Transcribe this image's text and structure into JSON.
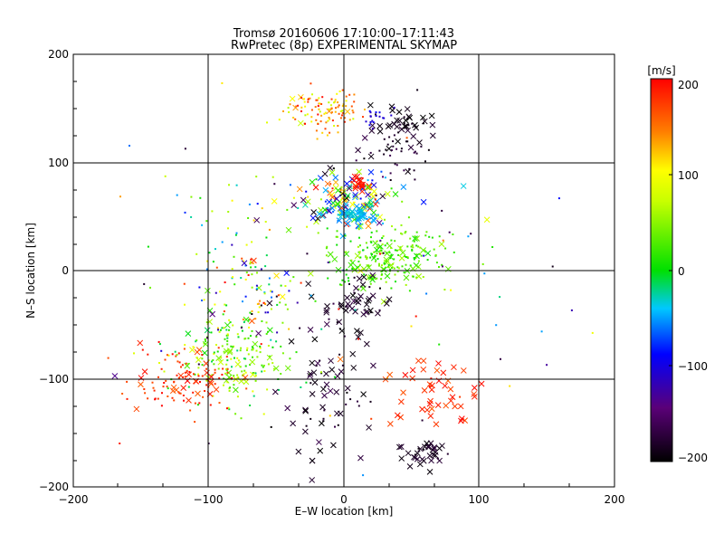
{
  "chart_data": {
    "type": "scatter",
    "title": "Tromsø 20160606 17:10:00–17:11:43",
    "subtitle": "RwPretec (8p) EXPERIMENTAL SKYMAP",
    "xlabel": "E–W location [km]",
    "ylabel": "N–S location [km]",
    "xlim": [
      -200,
      200
    ],
    "ylim": [
      -200,
      200
    ],
    "xticks": [
      "−200",
      "−100",
      "0",
      "100",
      "200"
    ],
    "yticks": [
      "−200",
      "−100",
      "0",
      "100",
      "200"
    ],
    "grid": true,
    "colorbar": {
      "label": "[m/s]",
      "range": [
        -200,
        200
      ],
      "ticks": [
        "200",
        "100",
        "0",
        "−100",
        "−200"
      ]
    },
    "marker_types": [
      "dot",
      "x"
    ],
    "clusters": [
      {
        "name": "north-top-dots",
        "x": -15,
        "y": 148,
        "sx": 15,
        "sy": 10,
        "n": 110,
        "v": [
          60,
          200
        ],
        "marker": "dot"
      },
      {
        "name": "north-top-x-black",
        "x": 45,
        "y": 135,
        "sx": 12,
        "sy": 8,
        "n": 40,
        "v": [
          -200,
          -170
        ],
        "marker": "x"
      },
      {
        "name": "north-top-blue",
        "x": 25,
        "y": 142,
        "sx": 6,
        "sy": 5,
        "n": 18,
        "v": [
          -120,
          -90
        ],
        "marker": "dot"
      },
      {
        "name": "north-mid-black",
        "x": 40,
        "y": 110,
        "sx": 14,
        "sy": 10,
        "n": 40,
        "v": [
          -200,
          -160
        ],
        "marker": "dot"
      },
      {
        "name": "upper-band-mixed",
        "x": 0,
        "y": 68,
        "sx": 18,
        "sy": 12,
        "n": 140,
        "v": [
          -200,
          200
        ],
        "marker": "x"
      },
      {
        "name": "upper-band-cyan",
        "x": 5,
        "y": 52,
        "sx": 10,
        "sy": 5,
        "n": 60,
        "v": [
          -60,
          -30
        ],
        "marker": "x"
      },
      {
        "name": "upper-band-red",
        "x": 12,
        "y": 80,
        "sx": 4,
        "sy": 4,
        "n": 16,
        "v": [
          180,
          200
        ],
        "marker": "x"
      },
      {
        "name": "mid-green",
        "x": 30,
        "y": 15,
        "sx": 22,
        "sy": 15,
        "n": 190,
        "v": [
          0,
          60
        ],
        "marker": "dot"
      },
      {
        "name": "mid-green-x",
        "x": 25,
        "y": 10,
        "sx": 18,
        "sy": 12,
        "n": 40,
        "v": [
          0,
          60
        ],
        "marker": "x"
      },
      {
        "name": "center-black-x",
        "x": 12,
        "y": -30,
        "sx": 12,
        "sy": 15,
        "n": 45,
        "v": [
          -200,
          -160
        ],
        "marker": "x"
      },
      {
        "name": "southwest-green",
        "x": -80,
        "y": -80,
        "sx": 20,
        "sy": 22,
        "n": 170,
        "v": [
          -20,
          100
        ],
        "marker": "dot"
      },
      {
        "name": "southwest-green-x",
        "x": -80,
        "y": -95,
        "sx": 15,
        "sy": 15,
        "n": 30,
        "v": [
          10,
          80
        ],
        "marker": "x"
      },
      {
        "name": "southwest-red",
        "x": -120,
        "y": -100,
        "sx": 18,
        "sy": 15,
        "n": 80,
        "v": [
          160,
          200
        ],
        "marker": "dot"
      },
      {
        "name": "southwest-red-x",
        "x": -115,
        "y": -105,
        "sx": 15,
        "sy": 15,
        "n": 30,
        "v": [
          160,
          200
        ],
        "marker": "x"
      },
      {
        "name": "south-center-black",
        "x": -15,
        "y": -110,
        "sx": 20,
        "sy": 35,
        "n": 75,
        "v": [
          -200,
          -160
        ],
        "marker": "x"
      },
      {
        "name": "southeast-red",
        "x": 70,
        "y": -110,
        "sx": 15,
        "sy": 18,
        "n": 50,
        "v": [
          160,
          200
        ],
        "marker": "x"
      },
      {
        "name": "southeast-black-x",
        "x": 60,
        "y": -170,
        "sx": 10,
        "sy": 8,
        "n": 35,
        "v": [
          -200,
          -170
        ],
        "marker": "x"
      },
      {
        "name": "mid-left-mixed",
        "x": -60,
        "y": -20,
        "sx": 25,
        "sy": 20,
        "n": 90,
        "v": [
          -200,
          200
        ],
        "marker": "dot"
      },
      {
        "name": "west-scatter",
        "x": -80,
        "y": 40,
        "sx": 25,
        "sy": 30,
        "n": 40,
        "v": [
          -100,
          120
        ],
        "marker": "dot"
      },
      {
        "name": "sparse-field",
        "x": 0,
        "y": 0,
        "sx": 90,
        "sy": 90,
        "n": 90,
        "v": [
          -200,
          200
        ],
        "marker": "dot"
      }
    ]
  }
}
